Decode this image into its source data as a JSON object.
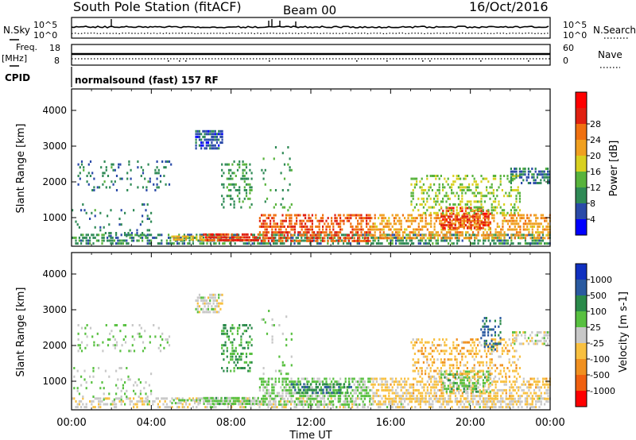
{
  "header": {
    "title": "South Pole Station (fitACF)",
    "beam": "Beam 00",
    "date": "16/Oct/2016"
  },
  "params": {
    "nsky_label": "N.Sky",
    "nsearch_label": "N.Search",
    "noise_ticks_left": [
      "10^5",
      "10^0"
    ],
    "noise_ticks_right": [
      "10^5",
      "10^0"
    ],
    "freq_label": "Freq.",
    "freq_unit": "[MHz]",
    "freq_ticks": [
      "18",
      "8"
    ],
    "nave_label": "Nave",
    "nave_ticks": [
      "60",
      "0"
    ],
    "cpid_label": "CPID",
    "cpid_value": "normalsound (fast) 157 RF"
  },
  "colors": {
    "power": [
      "#0000ff",
      "#2a4aa8",
      "#2f8a56",
      "#58b33c",
      "#d8d020",
      "#f0a020",
      "#f07010",
      "#e02010",
      "#ff0000"
    ],
    "velocity": [
      "#ff0000",
      "#f06010",
      "#f09020",
      "#f8c040",
      "#c8c8c8",
      "#58c040",
      "#2a8a4a",
      "#2a5aa0",
      "#1030c0"
    ]
  },
  "chart_data": [
    {
      "type": "heatmap",
      "name": "power",
      "ylabel": "Slant Range [km]",
      "xlabel": "",
      "y_ticks": [
        "1000",
        "2000",
        "3000",
        "4000"
      ],
      "ylim": [
        200,
        4600
      ],
      "x_range_hours": [
        0,
        24
      ],
      "colorbar": {
        "label": "Power [dB]",
        "ticks": [
          "4",
          "8",
          "12",
          "16",
          "20",
          "24",
          "28"
        ],
        "range": [
          0,
          32
        ]
      },
      "echo_regions": [
        {
          "t0": 0.0,
          "t1": 24.0,
          "r0": 250,
          "r1": 550,
          "value": 9,
          "density": 0.55
        },
        {
          "t0": 6.6,
          "t1": 9.4,
          "r0": 350,
          "r1": 560,
          "value": 26,
          "density": 0.85
        },
        {
          "t0": 5.0,
          "t1": 6.6,
          "r0": 350,
          "r1": 500,
          "value": 18,
          "density": 0.6
        },
        {
          "t0": 9.4,
          "t1": 15.0,
          "r0": 350,
          "r1": 1100,
          "value": 24,
          "density": 0.6
        },
        {
          "t0": 15.0,
          "t1": 24.0,
          "r0": 450,
          "r1": 1100,
          "value": 20,
          "density": 0.55
        },
        {
          "t0": 18.5,
          "t1": 21.0,
          "r0": 700,
          "r1": 1300,
          "value": 26,
          "density": 0.6
        },
        {
          "t0": 17.0,
          "t1": 22.5,
          "r0": 1100,
          "r1": 2200,
          "value": 14,
          "density": 0.35
        },
        {
          "t0": 0.3,
          "t1": 5.0,
          "r0": 1800,
          "r1": 2600,
          "value": 8,
          "density": 0.15
        },
        {
          "t0": 6.2,
          "t1": 7.6,
          "r0": 2900,
          "r1": 3450,
          "value": 6,
          "density": 0.7
        },
        {
          "t0": 7.5,
          "t1": 9.0,
          "r0": 1300,
          "r1": 2600,
          "value": 10,
          "density": 0.3
        },
        {
          "t0": 0.0,
          "t1": 4.0,
          "r0": 500,
          "r1": 1400,
          "value": 8,
          "density": 0.12
        },
        {
          "t0": 9.5,
          "t1": 11.0,
          "r0": 1200,
          "r1": 3000,
          "value": 10,
          "density": 0.08
        },
        {
          "t0": 22.0,
          "t1": 24.0,
          "r0": 2000,
          "r1": 2400,
          "value": 8,
          "density": 0.5
        }
      ]
    },
    {
      "type": "heatmap",
      "name": "velocity",
      "ylabel": "Slant Range [km]",
      "xlabel": "Time UT",
      "y_ticks": [
        "1000",
        "2000",
        "3000",
        "4000"
      ],
      "ylim": [
        200,
        4600
      ],
      "x_ticks": [
        "00:00",
        "04:00",
        "08:00",
        "12:00",
        "16:00",
        "20:00",
        "00:00"
      ],
      "x_range_hours": [
        0,
        24
      ],
      "colorbar": {
        "label": "Velocity [m s-1]",
        "ticks": [
          "1000",
          "500",
          "100",
          "25",
          "-25",
          "-100",
          "-500",
          "-1000"
        ],
        "range": [
          -1200,
          1200
        ]
      },
      "echo_regions": [
        {
          "t0": 0.0,
          "t1": 24.0,
          "r0": 250,
          "r1": 550,
          "value": 60,
          "density": 0.45
        },
        {
          "t0": 6.6,
          "t1": 9.4,
          "r0": 350,
          "r1": 560,
          "value": -200,
          "density": 0.85
        },
        {
          "t0": 5.0,
          "t1": 6.6,
          "r0": 350,
          "r1": 500,
          "value": -150,
          "density": 0.6
        },
        {
          "t0": 9.4,
          "t1": 15.0,
          "r0": 350,
          "r1": 1100,
          "value": -180,
          "density": 0.6
        },
        {
          "t0": 11.0,
          "t1": 14.0,
          "r0": 650,
          "r1": 950,
          "value": -600,
          "density": 0.55
        },
        {
          "t0": 15.0,
          "t1": 24.0,
          "r0": 450,
          "r1": 1100,
          "value": 200,
          "density": 0.55
        },
        {
          "t0": 18.5,
          "t1": 21.0,
          "r0": 700,
          "r1": 1300,
          "value": -250,
          "density": 0.55
        },
        {
          "t0": 17.0,
          "t1": 22.5,
          "r0": 1100,
          "r1": 2200,
          "value": 300,
          "density": 0.35
        },
        {
          "t0": 20.5,
          "t1": 21.5,
          "r0": 1900,
          "r1": 2800,
          "value": -700,
          "density": 0.4
        },
        {
          "t0": 0.3,
          "t1": 5.0,
          "r0": 1800,
          "r1": 2600,
          "value": -150,
          "density": 0.15
        },
        {
          "t0": 6.2,
          "t1": 7.6,
          "r0": 2900,
          "r1": 3450,
          "value": 0,
          "density": 0.7
        },
        {
          "t0": 7.5,
          "t1": 9.0,
          "r0": 1300,
          "r1": 2600,
          "value": -400,
          "density": 0.3
        },
        {
          "t0": 0.0,
          "t1": 4.0,
          "r0": 500,
          "r1": 1400,
          "value": -150,
          "density": 0.12
        },
        {
          "t0": 9.5,
          "t1": 11.0,
          "r0": 1200,
          "r1": 3000,
          "value": -120,
          "density": 0.08
        },
        {
          "t0": 22.0,
          "t1": 24.0,
          "r0": 2000,
          "r1": 2400,
          "value": 0,
          "density": 0.5
        }
      ]
    }
  ]
}
